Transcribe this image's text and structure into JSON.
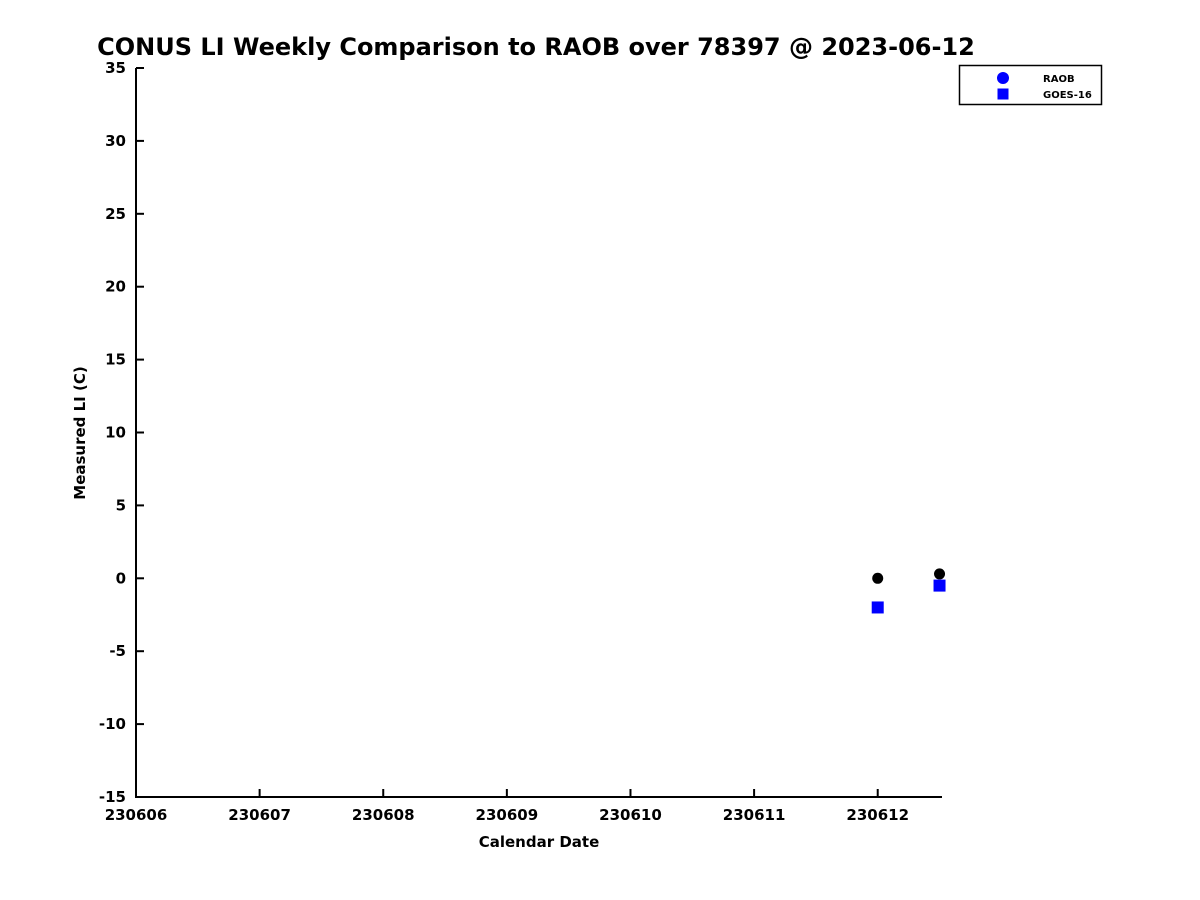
{
  "chart_data": {
    "type": "scatter",
    "title": "CONUS LI Weekly Comparison to RAOB over 78397 @ 2023-06-12",
    "xlabel": "Calendar Date",
    "ylabel": "Measured LI (C)",
    "xlim": [
      230606,
      230612.52
    ],
    "ylim": [
      -15,
      35
    ],
    "xticks": [
      230606,
      230607,
      230608,
      230609,
      230610,
      230611,
      230612
    ],
    "yticks": [
      -15,
      -10,
      -5,
      0,
      5,
      10,
      15,
      20,
      25,
      30,
      35
    ],
    "grid": false,
    "box": false,
    "legend_position": "top-right",
    "axis_color": "#000000",
    "background_color": "#ffffff",
    "series": [
      {
        "name": "RAOB",
        "marker": "circle",
        "color": "#000000",
        "legend_color": "#0000ff",
        "points": [
          {
            "x": 230612.0,
            "y": 0.0
          },
          {
            "x": 230612.5,
            "y": 0.3
          }
        ]
      },
      {
        "name": "GOES-16",
        "marker": "square",
        "color": "#0000ff",
        "legend_color": "#0000ff",
        "points": [
          {
            "x": 230612.0,
            "y": -2.0
          },
          {
            "x": 230612.5,
            "y": -0.5
          }
        ]
      }
    ]
  }
}
